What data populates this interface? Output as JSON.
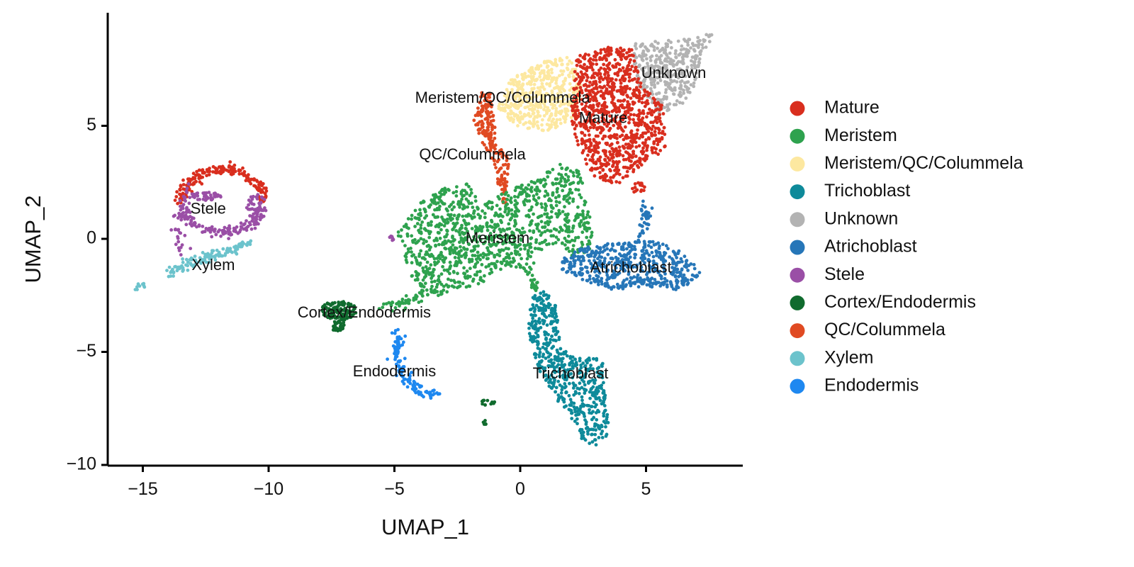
{
  "chart_data": {
    "type": "scatter",
    "title": "",
    "xlabel": "UMAP_1",
    "ylabel": "UMAP_2",
    "xlim": [
      -16.5,
      9
    ],
    "ylim": [
      -10,
      10
    ],
    "x_ticks": [
      -15,
      -10,
      -5,
      0,
      5
    ],
    "x_tick_labels": [
      "−15",
      "−10",
      "−5",
      "0",
      "5"
    ],
    "y_ticks": [
      -10,
      -5,
      0,
      5
    ],
    "y_tick_labels": [
      "−10",
      "−5",
      "0",
      "5"
    ],
    "grid": false,
    "legend_position": "right",
    "series": [
      {
        "name": "Mature",
        "color": "#D92E1E"
      },
      {
        "name": "Meristem",
        "color": "#2EA24E"
      },
      {
        "name": "Meristem/QC/Colummela",
        "color": "#FDE8A0"
      },
      {
        "name": "Trichoblast",
        "color": "#0E8A9A"
      },
      {
        "name": "Unknown",
        "color": "#B3B3B3"
      },
      {
        "name": "Atrichoblast",
        "color": "#2676B8"
      },
      {
        "name": "Stele",
        "color": "#9A4FA6"
      },
      {
        "name": "Cortex/Endodermis",
        "color": "#106B2E"
      },
      {
        "name": "QC/Colummela",
        "color": "#E04A22"
      },
      {
        "name": "Xylem",
        "color": "#6CC3CC"
      },
      {
        "name": "Endodermis",
        "color": "#1E88F0"
      }
    ],
    "clusters": [
      {
        "label": "Unknown",
        "x": 6.1,
        "y": 7.3
      },
      {
        "label": "Meristem/QC/Colummela",
        "x": -0.7,
        "y": 6.2
      },
      {
        "label": "Mature",
        "x": 3.3,
        "y": 5.3
      },
      {
        "label": "QC/Colummela",
        "x": -1.9,
        "y": 3.7
      },
      {
        "label": "Stele",
        "x": -12.4,
        "y": 1.3
      },
      {
        "label": "Meristem",
        "x": -0.9,
        "y": 0.0
      },
      {
        "label": "Xylem",
        "x": -12.2,
        "y": -1.2
      },
      {
        "label": "Atrichoblast",
        "x": 4.4,
        "y": -1.3
      },
      {
        "label": "Cortex/Endodermis",
        "x": -6.2,
        "y": -3.3
      },
      {
        "label": "Endodermis",
        "x": -5.0,
        "y": -5.9
      },
      {
        "label": "Trichoblast",
        "x": 2.0,
        "y": -6.0
      }
    ]
  }
}
